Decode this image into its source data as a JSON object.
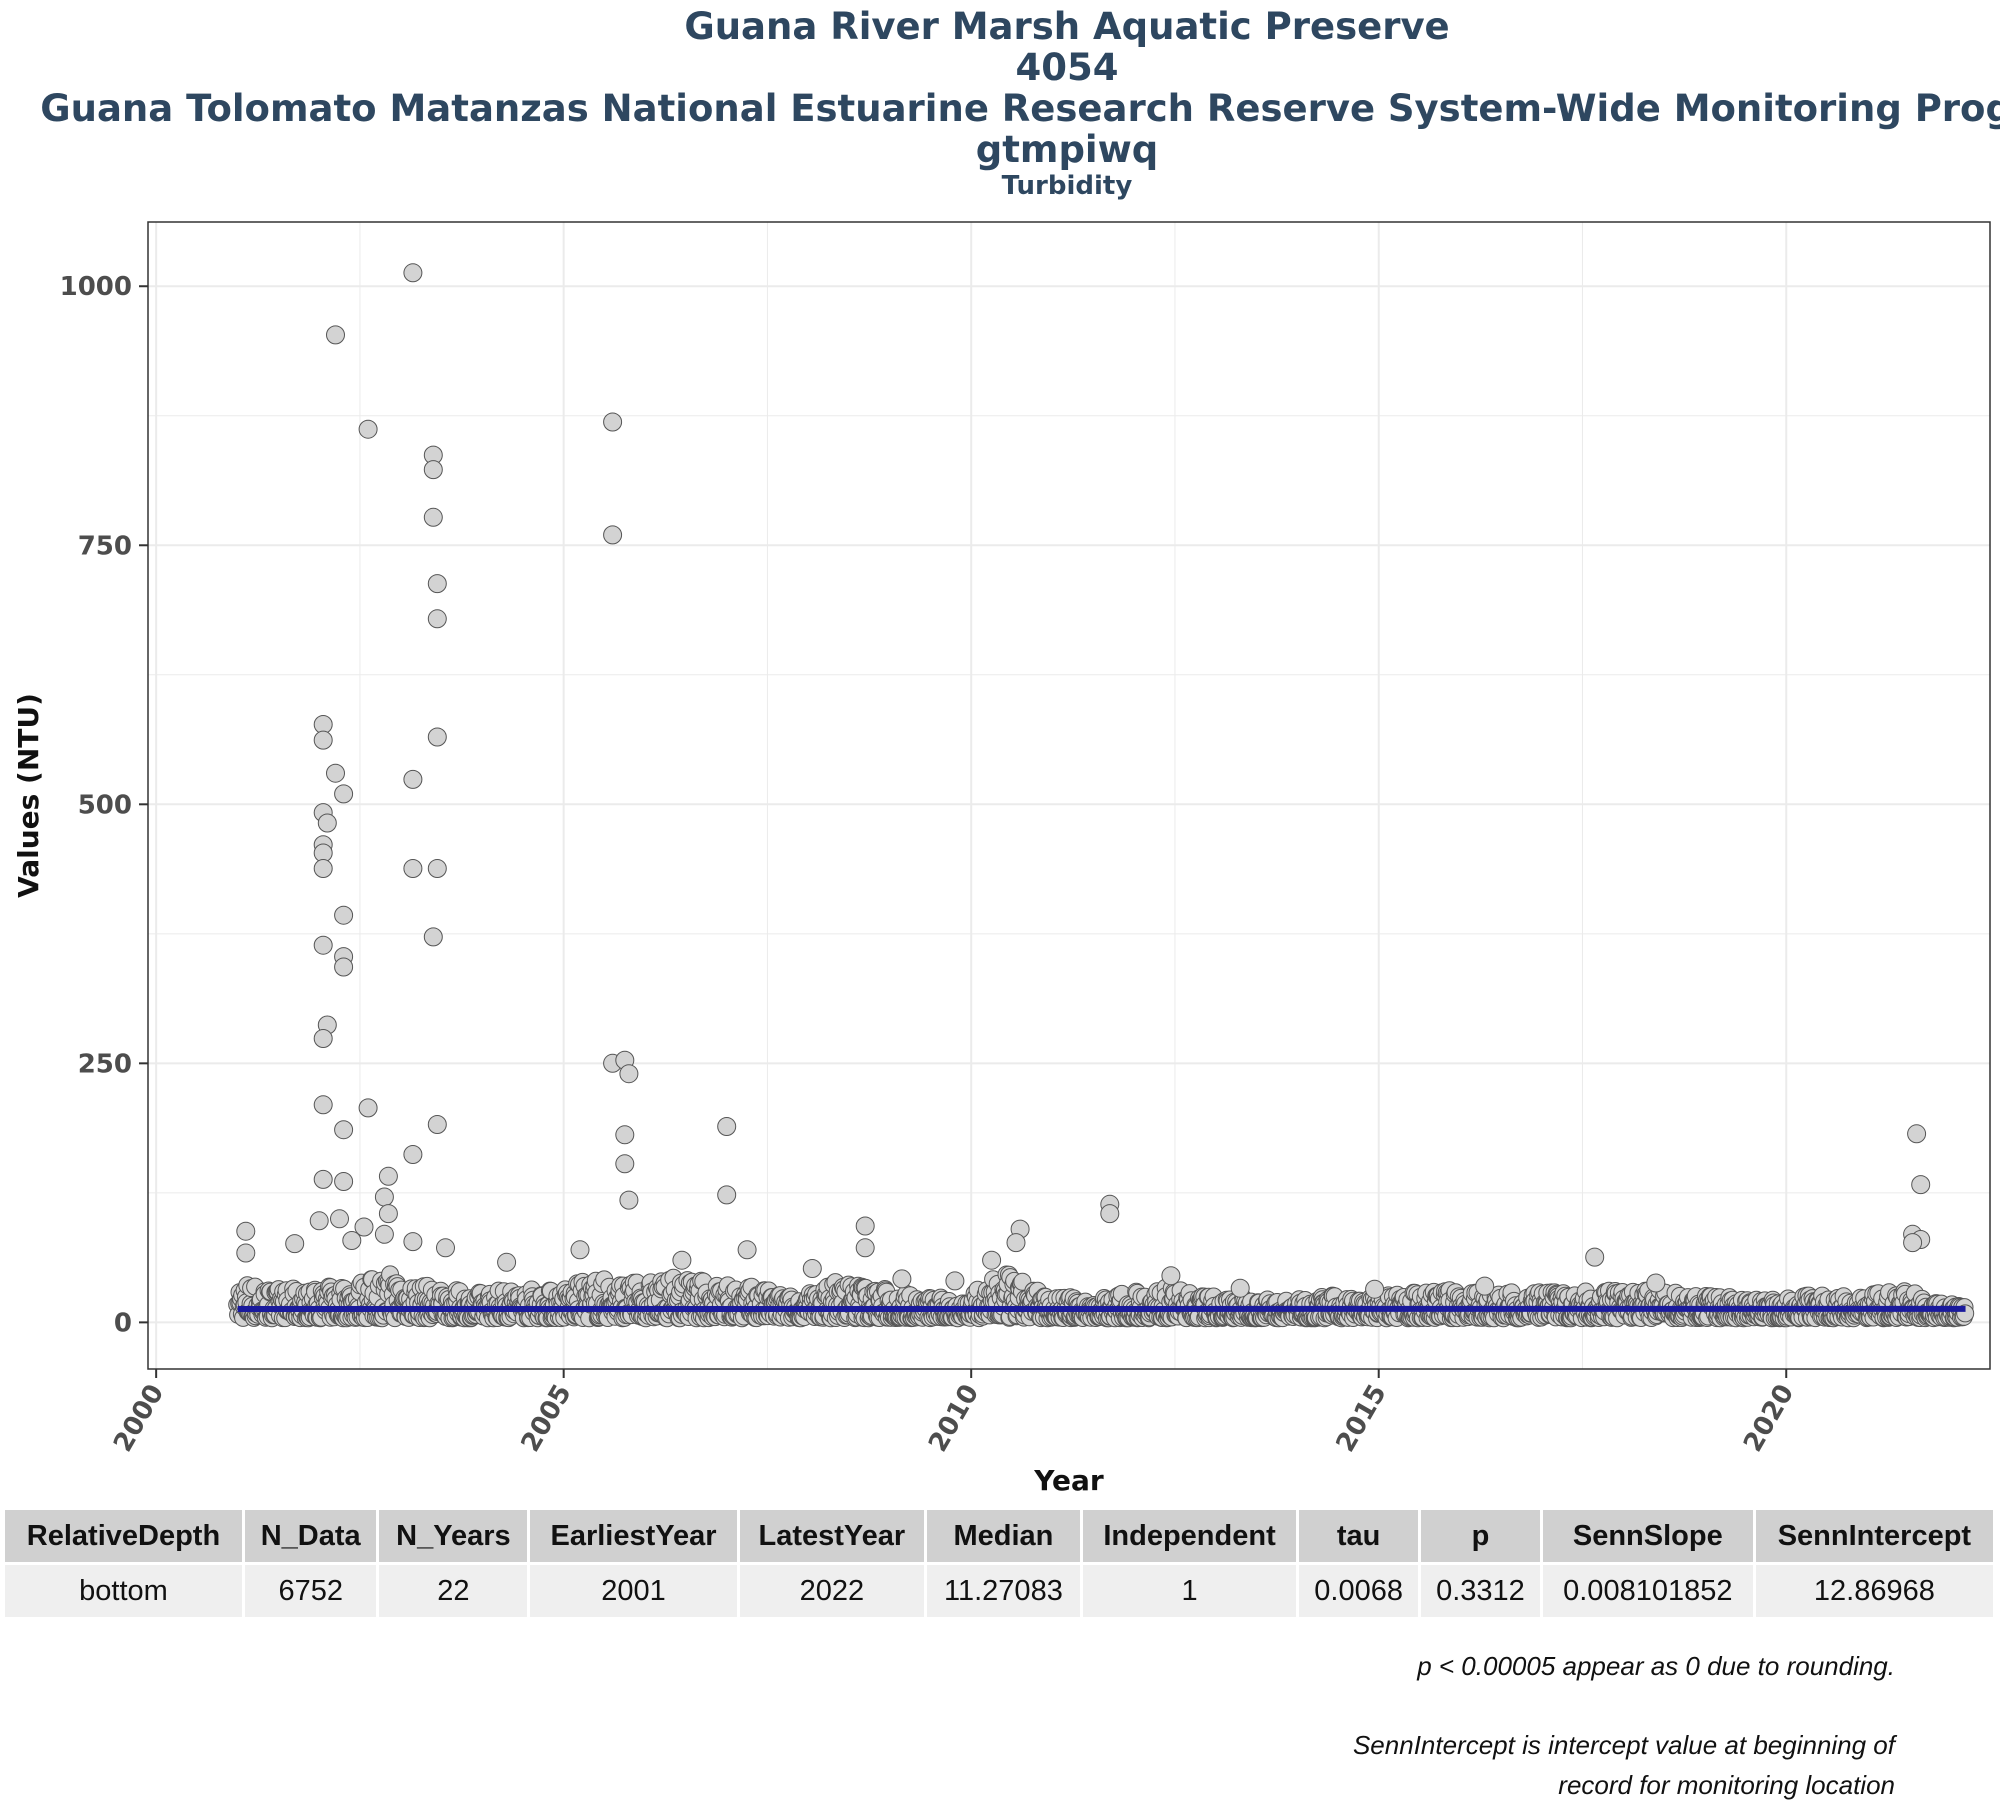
{
  "titles": {
    "line1": "Guana River Marsh Aquatic Preserve",
    "line2": "4054",
    "line3": "Guana Tolomato Matanzas National Estuarine Research Reserve System-Wide Monitoring Program",
    "line4": "gtmpiwq",
    "line5": "Turbidity"
  },
  "chart_data": {
    "type": "scatter",
    "xlabel": "Year",
    "ylabel": "Values (NTU)",
    "xlim": [
      1999.9,
      2022.5
    ],
    "ylim": [
      -45,
      1062
    ],
    "x_ticks": [
      2000,
      2005,
      2010,
      2015,
      2020
    ],
    "y_ticks": [
      0,
      250,
      500,
      750,
      1000
    ],
    "grid": true,
    "colors": {
      "point_fill": "#d3d3d3",
      "point_stroke": "#555555",
      "trend": "#1a1a9c",
      "grid": "#ebebeb"
    },
    "outliers": [
      [
        2003.15,
        1013
      ],
      [
        2002.2,
        953
      ],
      [
        2002.6,
        862
      ],
      [
        2005.6,
        869
      ],
      [
        2005.6,
        760
      ],
      [
        2003.4,
        837
      ],
      [
        2003.4,
        823
      ],
      [
        2003.4,
        777
      ],
      [
        2003.45,
        713
      ],
      [
        2003.45,
        679
      ],
      [
        2003.45,
        565
      ],
      [
        2003.15,
        524
      ],
      [
        2003.15,
        438
      ],
      [
        2003.45,
        438
      ],
      [
        2003.4,
        372
      ],
      [
        2002.05,
        577
      ],
      [
        2002.05,
        562
      ],
      [
        2002.2,
        530
      ],
      [
        2002.3,
        510
      ],
      [
        2002.05,
        492
      ],
      [
        2002.1,
        482
      ],
      [
        2002.05,
        461
      ],
      [
        2002.05,
        453
      ],
      [
        2002.05,
        438
      ],
      [
        2002.3,
        393
      ],
      [
        2002.05,
        364
      ],
      [
        2002.3,
        353
      ],
      [
        2002.3,
        343
      ],
      [
        2002.1,
        287
      ],
      [
        2002.05,
        274
      ],
      [
        2002.05,
        210
      ],
      [
        2002.6,
        207
      ],
      [
        2002.3,
        186
      ],
      [
        2003.45,
        191
      ],
      [
        2003.15,
        162
      ],
      [
        2005.6,
        250
      ],
      [
        2005.75,
        253
      ],
      [
        2005.8,
        240
      ],
      [
        2005.75,
        181
      ],
      [
        2005.75,
        153
      ],
      [
        2005.8,
        118
      ],
      [
        2007.0,
        189
      ],
      [
        2007.0,
        123
      ],
      [
        2002.05,
        138
      ],
      [
        2002.3,
        136
      ],
      [
        2002.85,
        141
      ],
      [
        2002.8,
        121
      ],
      [
        2002.85,
        105
      ],
      [
        2002.8,
        85
      ],
      [
        2011.7,
        114
      ],
      [
        2011.7,
        105
      ],
      [
        2021.6,
        182
      ],
      [
        2021.65,
        133
      ],
      [
        2021.55,
        85
      ],
      [
        2021.65,
        80
      ],
      [
        2021.55,
        77
      ],
      [
        2017.65,
        63
      ],
      [
        2010.6,
        90
      ],
      [
        2010.55,
        77
      ],
      [
        2008.7,
        93
      ],
      [
        2008.7,
        72
      ],
      [
        2010.25,
        60
      ],
      [
        2001.1,
        88
      ],
      [
        2001.1,
        67
      ],
      [
        2001.7,
        76
      ],
      [
        2007.25,
        70
      ],
      [
        2005.2,
        70
      ],
      [
        2004.3,
        58
      ],
      [
        2003.55,
        72
      ],
      [
        2003.15,
        78
      ],
      [
        2009.8,
        40
      ],
      [
        2013.3,
        33
      ],
      [
        2012.45,
        45
      ],
      [
        2018.4,
        38
      ],
      [
        2014.95,
        32
      ],
      [
        2016.3,
        35
      ],
      [
        2006.45,
        60
      ],
      [
        2008.05,
        52
      ],
      [
        2009.15,
        42
      ],
      [
        2002.0,
        98
      ],
      [
        2002.55,
        92
      ],
      [
        2002.25,
        100
      ],
      [
        2002.4,
        79
      ]
    ],
    "seasonal_peaks": [
      [
        2001.0,
        40
      ],
      [
        2001.4,
        30
      ],
      [
        2001.9,
        28
      ],
      [
        2002.4,
        35
      ],
      [
        2002.9,
        45
      ],
      [
        2003.4,
        30
      ],
      [
        2003.9,
        25
      ],
      [
        2004.4,
        30
      ],
      [
        2004.9,
        28
      ],
      [
        2005.4,
        40
      ],
      [
        2005.9,
        35
      ],
      [
        2006.4,
        40
      ],
      [
        2006.9,
        35
      ],
      [
        2007.4,
        30
      ],
      [
        2007.9,
        20
      ],
      [
        2008.4,
        40
      ],
      [
        2008.9,
        30
      ],
      [
        2009.4,
        22
      ],
      [
        2009.9,
        18
      ],
      [
        2010.4,
        45
      ],
      [
        2010.9,
        25
      ],
      [
        2011.4,
        18
      ],
      [
        2011.9,
        25
      ],
      [
        2012.4,
        30
      ],
      [
        2012.9,
        22
      ],
      [
        2013.4,
        20
      ],
      [
        2013.9,
        18
      ],
      [
        2014.4,
        22
      ],
      [
        2014.9,
        20
      ],
      [
        2015.4,
        25
      ],
      [
        2015.9,
        28
      ],
      [
        2016.4,
        25
      ],
      [
        2016.9,
        25
      ],
      [
        2017.4,
        25
      ],
      [
        2017.9,
        28
      ],
      [
        2018.4,
        28
      ],
      [
        2018.9,
        22
      ],
      [
        2019.4,
        20
      ],
      [
        2019.9,
        18
      ],
      [
        2020.4,
        25
      ],
      [
        2020.9,
        20
      ],
      [
        2021.4,
        30
      ],
      [
        2021.9,
        15
      ],
      [
        2022.2,
        12
      ]
    ],
    "trend_line": {
      "start": [
        2001.0,
        12.86968
      ],
      "end": [
        2022.2,
        13.04
      ]
    }
  },
  "stats_table": {
    "headers": [
      "RelativeDepth",
      "N_Data",
      "N_Years",
      "EarliestYear",
      "LatestYear",
      "Median",
      "Independent",
      "tau",
      "p",
      "SennSlope",
      "SennIntercept"
    ],
    "row": [
      "bottom",
      "6752",
      "22",
      "2001",
      "2022",
      "11.27083",
      "1",
      "0.0068",
      "0.3312",
      "0.008101852",
      "12.86968"
    ]
  },
  "notes": {
    "rounding": "p < 0.00005 appear as 0 due to rounding.",
    "intercept_line1": "SennIntercept is intercept value at beginning of",
    "intercept_line2": "record for monitoring location"
  }
}
